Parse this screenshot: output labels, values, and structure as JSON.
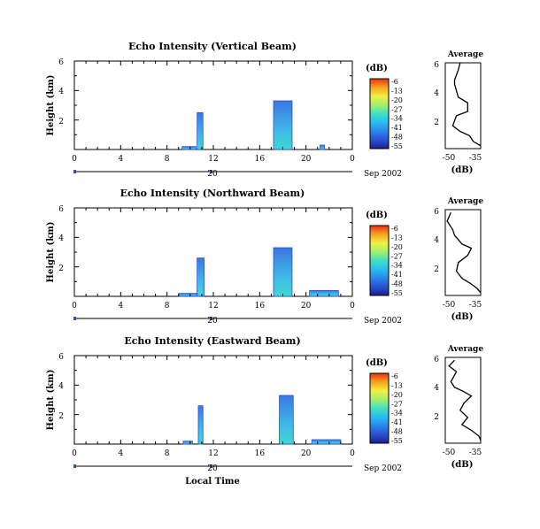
{
  "colors": {
    "colorbar": [
      "#1e1e90",
      "#2a4fd0",
      "#2a86ec",
      "#28c0f0",
      "#40e0c0",
      "#a0f070",
      "#f0f040",
      "#f8a020",
      "#e83010"
    ],
    "echo_outline": "#2a4fd0",
    "echo_fill_upper": "#3a78e0",
    "echo_fill_lower": "#40d8d0"
  },
  "shared": {
    "x_ticks": [
      "0",
      "4",
      "8",
      "12",
      "16",
      "20",
      "0"
    ],
    "y_ticks": [
      "6",
      "4",
      "2"
    ],
    "date_axis_label": "20",
    "date_right_label": "Sep 2002",
    "colorbar_unit": "(dB)",
    "colorbar_ticks": [
      "-6",
      "-13",
      "-20",
      "-27",
      "-34",
      "-41",
      "-48",
      "-55"
    ],
    "height_label": "Height (km)",
    "avg_title": "Average",
    "avg_xlabel": "(dB)",
    "avg_xticks": [
      "-50",
      "-35"
    ],
    "avg_yticks": [
      "6",
      "4",
      "2"
    ]
  },
  "xlabel_bottom": "Local Time",
  "chart_data": [
    {
      "type": "heatmap",
      "title": "Echo Intensity (Vertical Beam)",
      "x_unit": "local time (h)",
      "y_unit": "height (km)",
      "xlim": [
        0,
        24
      ],
      "ylim": [
        0,
        6
      ],
      "color_scale_db": [
        -55,
        -6
      ],
      "echo_regions": [
        {
          "x0": 10.6,
          "x1": 11.1,
          "y_top": 2.5,
          "y_bottom": 0.0
        },
        {
          "x0": 17.2,
          "x1": 18.8,
          "y_top": 3.3,
          "y_bottom": 0.0
        },
        {
          "x0": 9.3,
          "x1": 10.5,
          "y_top": 0.2,
          "y_bottom": 0.0
        },
        {
          "x0": 21.2,
          "x1": 21.6,
          "y_top": 0.3,
          "y_bottom": 0.0
        }
      ],
      "average_profile": {
        "xlim": [
          -52,
          -33
        ],
        "points": [
          [
            -44,
            6.0
          ],
          [
            -45,
            5.5
          ],
          [
            -47,
            4.8
          ],
          [
            -47,
            4.5
          ],
          [
            -45,
            3.6
          ],
          [
            -40,
            3.2
          ],
          [
            -40,
            2.6
          ],
          [
            -46,
            2.3
          ],
          [
            -48,
            1.6
          ],
          [
            -44,
            1.2
          ],
          [
            -39,
            0.9
          ],
          [
            -37,
            0.5
          ],
          [
            -33,
            0.2
          ]
        ]
      }
    },
    {
      "type": "heatmap",
      "title": "Echo Intensity (Northward Beam)",
      "x_unit": "local time (h)",
      "y_unit": "height (km)",
      "xlim": [
        0,
        24
      ],
      "ylim": [
        0,
        6
      ],
      "color_scale_db": [
        -55,
        -6
      ],
      "echo_regions": [
        {
          "x0": 10.6,
          "x1": 11.2,
          "y_top": 2.6,
          "y_bottom": 0.0
        },
        {
          "x0": 17.2,
          "x1": 18.8,
          "y_top": 3.3,
          "y_bottom": 0.0
        },
        {
          "x0": 9.0,
          "x1": 10.6,
          "y_top": 0.2,
          "y_bottom": 0.0
        },
        {
          "x0": 20.3,
          "x1": 22.8,
          "y_top": 0.4,
          "y_bottom": 0.0
        }
      ],
      "average_profile": {
        "xlim": [
          -52,
          -33
        ],
        "points": [
          [
            -49,
            5.8
          ],
          [
            -51,
            5.2
          ],
          [
            -48,
            4.6
          ],
          [
            -47,
            4.2
          ],
          [
            -43,
            3.6
          ],
          [
            -38,
            3.3
          ],
          [
            -40,
            2.8
          ],
          [
            -45,
            2.3
          ],
          [
            -46,
            1.7
          ],
          [
            -43,
            1.2
          ],
          [
            -38,
            0.8
          ],
          [
            -35,
            0.5
          ],
          [
            -33,
            0.2
          ]
        ]
      }
    },
    {
      "type": "heatmap",
      "title": "Echo Intensity (Eastward Beam)",
      "x_unit": "local time (h)",
      "y_unit": "height (km)",
      "xlim": [
        0,
        24
      ],
      "ylim": [
        0,
        6
      ],
      "color_scale_db": [
        -55,
        -6
      ],
      "echo_regions": [
        {
          "x0": 10.7,
          "x1": 11.1,
          "y_top": 2.6,
          "y_bottom": 0.0
        },
        {
          "x0": 17.7,
          "x1": 18.9,
          "y_top": 3.3,
          "y_bottom": 0.0
        },
        {
          "x0": 9.4,
          "x1": 10.2,
          "y_top": 0.2,
          "y_bottom": 0.0
        },
        {
          "x0": 20.5,
          "x1": 23.0,
          "y_top": 0.3,
          "y_bottom": 0.0
        }
      ],
      "average_profile": {
        "xlim": [
          -52,
          -33
        ],
        "points": [
          [
            -47,
            5.8
          ],
          [
            -50,
            5.4
          ],
          [
            -46,
            5.0
          ],
          [
            -49,
            4.3
          ],
          [
            -47,
            3.9
          ],
          [
            -42,
            3.6
          ],
          [
            -38,
            3.3
          ],
          [
            -42,
            2.8
          ],
          [
            -44,
            2.3
          ],
          [
            -40,
            1.8
          ],
          [
            -43,
            1.3
          ],
          [
            -38,
            0.9
          ],
          [
            -34,
            0.5
          ],
          [
            -33,
            0.2
          ]
        ]
      }
    }
  ]
}
